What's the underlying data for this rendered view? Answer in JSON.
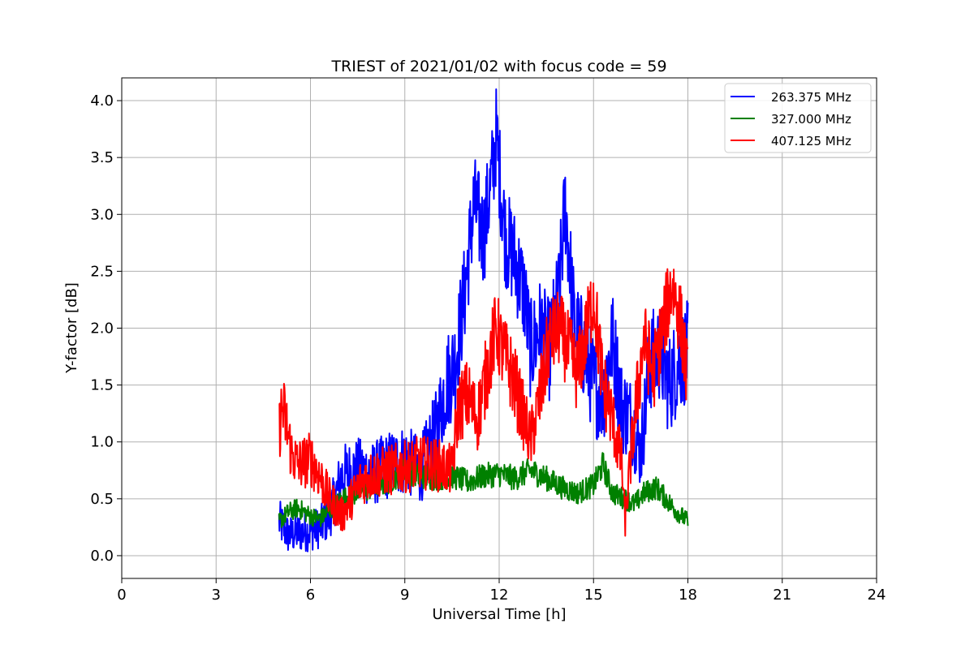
{
  "chart_data": {
    "type": "line",
    "title": "TRIEST of 2021/01/02 with focus code = 59",
    "xlabel": "Universal Time [h]",
    "ylabel": "Y-factor [dB]",
    "xlim": [
      0,
      24
    ],
    "ylim": [
      -0.2,
      4.2
    ],
    "xticks": [
      0,
      3,
      6,
      9,
      12,
      15,
      18,
      21,
      24
    ],
    "yticks": [
      0.0,
      0.5,
      1.0,
      1.5,
      2.0,
      2.5,
      3.0,
      3.5,
      4.0
    ],
    "xtick_labels": [
      "0",
      "3",
      "6",
      "9",
      "12",
      "15",
      "18",
      "21",
      "24"
    ],
    "ytick_labels": [
      "0.0",
      "0.5",
      "1.0",
      "1.5",
      "2.0",
      "2.5",
      "3.0",
      "3.5",
      "4.0"
    ],
    "grid": true,
    "legend_position": "top-right",
    "series": [
      {
        "name": "263.375 MHz",
        "color": "#0000ff",
        "x": [
          5.0,
          5.3,
          5.6,
          6.0,
          6.3,
          6.6,
          7.0,
          7.5,
          8.0,
          8.5,
          9.0,
          9.5,
          10.0,
          10.3,
          10.6,
          10.9,
          11.2,
          11.5,
          11.8,
          11.9,
          12.2,
          12.5,
          12.8,
          13.0,
          13.3,
          13.6,
          13.9,
          14.1,
          14.4,
          14.7,
          15.0,
          15.3,
          15.6,
          15.9,
          16.2,
          16.5,
          16.8,
          17.1,
          17.4,
          17.7,
          18.0
        ],
        "y": [
          0.3,
          0.18,
          0.2,
          0.22,
          0.25,
          0.35,
          0.7,
          0.75,
          0.72,
          0.8,
          0.85,
          0.75,
          1.1,
          1.5,
          1.7,
          2.3,
          3.1,
          2.8,
          3.4,
          3.7,
          2.8,
          2.6,
          2.3,
          1.8,
          2.0,
          1.8,
          2.3,
          3.1,
          2.0,
          1.8,
          1.5,
          1.4,
          1.9,
          1.3,
          1.2,
          0.9,
          1.7,
          1.8,
          1.5,
          1.7,
          1.8
        ]
      },
      {
        "name": "327.000 MHz",
        "color": "#008000",
        "x": [
          5.0,
          5.3,
          5.6,
          6.0,
          6.3,
          6.6,
          7.0,
          7.5,
          8.0,
          8.5,
          9.0,
          9.5,
          10.0,
          10.5,
          11.0,
          11.5,
          12.0,
          12.5,
          13.0,
          13.5,
          14.0,
          14.5,
          15.0,
          15.3,
          15.6,
          16.0,
          16.3,
          16.6,
          17.0,
          17.3,
          17.6,
          18.0
        ],
        "y": [
          0.3,
          0.38,
          0.42,
          0.35,
          0.32,
          0.4,
          0.5,
          0.55,
          0.6,
          0.65,
          0.75,
          0.7,
          0.68,
          0.7,
          0.65,
          0.7,
          0.72,
          0.68,
          0.75,
          0.68,
          0.6,
          0.55,
          0.62,
          0.8,
          0.55,
          0.5,
          0.45,
          0.55,
          0.6,
          0.5,
          0.4,
          0.3
        ]
      },
      {
        "name": "407.125 MHz",
        "color": "#ff0000",
        "x": [
          5.0,
          5.1,
          5.2,
          5.4,
          5.6,
          6.0,
          6.3,
          6.6,
          7.0,
          7.3,
          7.6,
          8.0,
          8.5,
          9.0,
          9.5,
          10.0,
          10.5,
          10.7,
          11.0,
          11.3,
          11.6,
          11.9,
          12.1,
          12.4,
          12.7,
          13.0,
          13.3,
          13.6,
          13.9,
          14.2,
          14.5,
          14.8,
          15.0,
          15.3,
          15.6,
          15.9,
          16.0,
          16.3,
          16.6,
          16.9,
          17.2,
          17.5,
          17.8,
          18.0
        ],
        "y": [
          1.1,
          1.3,
          1.2,
          0.9,
          0.8,
          0.85,
          0.7,
          0.5,
          0.35,
          0.5,
          0.65,
          0.72,
          0.75,
          0.78,
          0.82,
          0.8,
          0.75,
          1.3,
          1.4,
          1.2,
          1.6,
          2.0,
          1.8,
          1.6,
          1.3,
          1.0,
          1.4,
          1.9,
          2.0,
          1.8,
          1.6,
          2.0,
          2.3,
          1.5,
          1.2,
          0.8,
          0.3,
          1.2,
          1.9,
          1.6,
          2.0,
          2.4,
          2.0,
          1.5
        ]
      }
    ]
  }
}
